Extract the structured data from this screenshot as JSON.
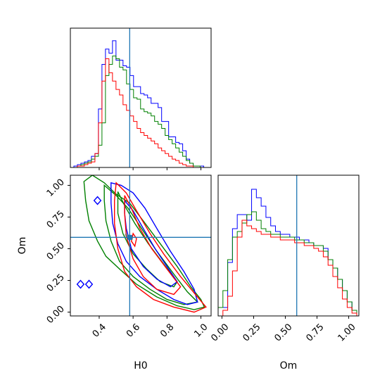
{
  "chart_data": {
    "type": "corner",
    "parameters": [
      "H0",
      "Om"
    ],
    "truth": {
      "H0": 0.58,
      "Om": 0.59
    },
    "colors": {
      "blue": "#0000ff",
      "green": "#008000",
      "red": "#ff0000",
      "truth": "#1f77b4"
    },
    "axes": {
      "H0": {
        "label": "H0",
        "range": [
          0.23,
          1.06
        ],
        "ticks": [
          0.4,
          0.6,
          0.8,
          1.0
        ],
        "tick_labels": [
          "0.4",
          "0.6",
          "0.8",
          "1.0"
        ]
      },
      "Om": {
        "label": "Om",
        "range": [
          -0.03,
          1.08
        ],
        "ticks": [
          0.0,
          0.25,
          0.5,
          0.75,
          1.0
        ],
        "tick_labels": [
          "0.00",
          "0.25",
          "0.50",
          "0.75",
          "1.00"
        ]
      }
    },
    "hist_H0": {
      "x_min": 0.23,
      "bin_width": 0.0207,
      "ymax": 1.0,
      "series": [
        {
          "color": "blue",
          "values": [
            0,
            0.01,
            0.02,
            0.03,
            0.04,
            0.05,
            0.08,
            0.1,
            0.42,
            0.74,
            0.85,
            0.82,
            0.91,
            0.77,
            0.77,
            0.73,
            0.72,
            0.66,
            0.58,
            0.58,
            0.53,
            0.52,
            0.5,
            0.46,
            0.46,
            0.43,
            0.33,
            0.33,
            0.22,
            0.22,
            0.18,
            0.17,
            0.12,
            0.06,
            0.03,
            0.01,
            0.01,
            0.01,
            0,
            0,
            0
          ]
        },
        {
          "color": "green",
          "values": [
            0,
            0,
            0.01,
            0.02,
            0.03,
            0.04,
            0.06,
            0.08,
            0.16,
            0.32,
            0.66,
            0.74,
            0.8,
            0.78,
            0.72,
            0.7,
            0.6,
            0.56,
            0.5,
            0.49,
            0.42,
            0.4,
            0.39,
            0.37,
            0.33,
            0.31,
            0.28,
            0.23,
            0.2,
            0.17,
            0.14,
            0.11,
            0.08,
            0.05,
            0.03,
            0.01,
            0.01,
            0,
            0,
            0
          ]
        },
        {
          "color": "red",
          "values": [
            0,
            0,
            0.01,
            0.01,
            0.02,
            0.03,
            0.04,
            0.1,
            0.32,
            0.62,
            0.78,
            0.68,
            0.62,
            0.56,
            0.52,
            0.45,
            0.41,
            0.37,
            0.33,
            0.28,
            0.25,
            0.23,
            0.21,
            0.19,
            0.17,
            0.14,
            0.12,
            0.1,
            0.08,
            0.06,
            0.05,
            0.03,
            0.02,
            0.01,
            0.01,
            0,
            0,
            0,
            0,
            0
          ]
        }
      ]
    },
    "hist_Om": {
      "x_min": -0.03,
      "bin_width": 0.0377,
      "ymax": 1.0,
      "series": [
        {
          "color": "blue",
          "values": [
            0.06,
            0.06,
            0.38,
            0.62,
            0.72,
            0.72,
            0.68,
            0.9,
            0.84,
            0.78,
            0.7,
            0.64,
            0.6,
            0.58,
            0.58,
            0.56,
            0.56,
            0.54,
            0.54,
            0.52,
            0.5,
            0.5,
            0.48,
            0.4,
            0.34,
            0.26,
            0.18,
            0.1,
            0.04
          ]
        },
        {
          "color": "green",
          "values": [
            0.06,
            0.18,
            0.4,
            0.56,
            0.6,
            0.66,
            0.72,
            0.74,
            0.68,
            0.62,
            0.6,
            0.58,
            0.58,
            0.56,
            0.56,
            0.56,
            0.54,
            0.54,
            0.52,
            0.52,
            0.5,
            0.5,
            0.46,
            0.4,
            0.34,
            0.26,
            0.18,
            0.1,
            0.04
          ]
        },
        {
          "color": "red",
          "values": [
            0,
            0.04,
            0.14,
            0.32,
            0.56,
            0.68,
            0.64,
            0.62,
            0.6,
            0.58,
            0.58,
            0.56,
            0.56,
            0.54,
            0.54,
            0.54,
            0.52,
            0.52,
            0.5,
            0.5,
            0.48,
            0.46,
            0.42,
            0.36,
            0.28,
            0.2,
            0.12,
            0.06,
            0.02
          ]
        }
      ]
    },
    "contours": [
      {
        "color": "green",
        "points": [
          [
            0.31,
            1.03
          ],
          [
            0.36,
            1.08
          ],
          [
            0.43,
            1.02
          ],
          [
            0.5,
            0.93
          ],
          [
            0.58,
            0.86
          ],
          [
            0.66,
            0.72
          ],
          [
            0.76,
            0.54
          ],
          [
            0.86,
            0.36
          ],
          [
            0.94,
            0.2
          ],
          [
            1.0,
            0.1
          ],
          [
            1.02,
            0.04
          ],
          [
            0.96,
            0.02
          ],
          [
            0.86,
            0.05
          ],
          [
            0.74,
            0.12
          ],
          [
            0.62,
            0.22
          ],
          [
            0.52,
            0.34
          ],
          [
            0.44,
            0.44
          ],
          [
            0.39,
            0.56
          ],
          [
            0.34,
            0.72
          ],
          [
            0.32,
            0.88
          ],
          [
            0.31,
            1.03
          ]
        ]
      },
      {
        "color": "green",
        "points": [
          [
            0.43,
            1.0
          ],
          [
            0.5,
            0.92
          ],
          [
            0.57,
            0.82
          ],
          [
            0.65,
            0.66
          ],
          [
            0.74,
            0.48
          ],
          [
            0.84,
            0.3
          ],
          [
            0.92,
            0.16
          ],
          [
            0.98,
            0.08
          ],
          [
            0.9,
            0.06
          ],
          [
            0.8,
            0.1
          ],
          [
            0.7,
            0.18
          ],
          [
            0.6,
            0.28
          ],
          [
            0.52,
            0.4
          ],
          [
            0.47,
            0.56
          ],
          [
            0.44,
            0.72
          ],
          [
            0.43,
            0.88
          ],
          [
            0.43,
            1.0
          ]
        ]
      },
      {
        "color": "green",
        "points": [
          [
            0.51,
            0.95
          ],
          [
            0.55,
            0.84
          ],
          [
            0.61,
            0.7
          ],
          [
            0.69,
            0.54
          ],
          [
            0.78,
            0.38
          ],
          [
            0.86,
            0.24
          ],
          [
            0.84,
            0.2
          ],
          [
            0.76,
            0.24
          ],
          [
            0.68,
            0.34
          ],
          [
            0.6,
            0.46
          ],
          [
            0.54,
            0.62
          ],
          [
            0.51,
            0.78
          ],
          [
            0.51,
            0.95
          ]
        ]
      },
      {
        "color": "blue",
        "points": [
          [
            0.47,
            1.02
          ],
          [
            0.53,
            1.0
          ],
          [
            0.6,
            0.94
          ],
          [
            0.67,
            0.82
          ],
          [
            0.74,
            0.66
          ],
          [
            0.82,
            0.48
          ],
          [
            0.9,
            0.32
          ],
          [
            0.96,
            0.18
          ],
          [
            0.98,
            0.08
          ],
          [
            0.92,
            0.06
          ],
          [
            0.84,
            0.1
          ],
          [
            0.74,
            0.18
          ],
          [
            0.64,
            0.28
          ],
          [
            0.56,
            0.4
          ],
          [
            0.51,
            0.54
          ],
          [
            0.48,
            0.7
          ],
          [
            0.47,
            0.86
          ],
          [
            0.47,
            1.02
          ]
        ]
      },
      {
        "color": "blue",
        "points": [
          [
            0.55,
            0.88
          ],
          [
            0.6,
            0.8
          ],
          [
            0.66,
            0.66
          ],
          [
            0.73,
            0.5
          ],
          [
            0.8,
            0.36
          ],
          [
            0.86,
            0.24
          ],
          [
            0.82,
            0.2
          ],
          [
            0.74,
            0.26
          ],
          [
            0.66,
            0.36
          ],
          [
            0.59,
            0.5
          ],
          [
            0.56,
            0.66
          ],
          [
            0.55,
            0.78
          ],
          [
            0.55,
            0.88
          ]
        ]
      },
      {
        "color": "blue",
        "points": [
          [
            0.27,
            0.22
          ],
          [
            0.29,
            0.25
          ],
          [
            0.31,
            0.22
          ],
          [
            0.29,
            0.19
          ],
          [
            0.27,
            0.22
          ]
        ]
      },
      {
        "color": "blue",
        "points": [
          [
            0.32,
            0.22
          ],
          [
            0.34,
            0.25
          ],
          [
            0.36,
            0.22
          ],
          [
            0.34,
            0.19
          ],
          [
            0.32,
            0.22
          ]
        ]
      },
      {
        "color": "blue",
        "points": [
          [
            0.37,
            0.88
          ],
          [
            0.39,
            0.91
          ],
          [
            0.41,
            0.88
          ],
          [
            0.39,
            0.85
          ],
          [
            0.37,
            0.88
          ]
        ]
      },
      {
        "color": "red",
        "points": [
          [
            0.5,
            1.02
          ],
          [
            0.56,
            0.94
          ],
          [
            0.62,
            0.8
          ],
          [
            0.7,
            0.62
          ],
          [
            0.78,
            0.46
          ],
          [
            0.88,
            0.28
          ],
          [
            0.98,
            0.12
          ],
          [
            1.03,
            0.04
          ],
          [
            0.96,
            0.0
          ],
          [
            0.84,
            0.04
          ],
          [
            0.72,
            0.1
          ],
          [
            0.62,
            0.2
          ],
          [
            0.55,
            0.32
          ],
          [
            0.51,
            0.5
          ],
          [
            0.49,
            0.7
          ],
          [
            0.49,
            0.88
          ],
          [
            0.5,
            1.02
          ]
        ]
      },
      {
        "color": "red",
        "points": [
          [
            0.55,
            0.92
          ],
          [
            0.59,
            0.82
          ],
          [
            0.64,
            0.66
          ],
          [
            0.71,
            0.5
          ],
          [
            0.8,
            0.34
          ],
          [
            0.88,
            0.2
          ],
          [
            0.84,
            0.14
          ],
          [
            0.74,
            0.18
          ],
          [
            0.66,
            0.28
          ],
          [
            0.6,
            0.42
          ],
          [
            0.56,
            0.6
          ],
          [
            0.55,
            0.78
          ],
          [
            0.55,
            0.92
          ]
        ]
      },
      {
        "color": "red",
        "points": [
          [
            0.6,
            0.62
          ],
          [
            0.62,
            0.58
          ],
          [
            0.61,
            0.52
          ],
          [
            0.59,
            0.56
          ],
          [
            0.6,
            0.62
          ]
        ]
      }
    ],
    "density_points": [
      [
        0.57,
        0.6
      ],
      [
        0.58,
        0.59
      ],
      [
        0.59,
        0.58
      ],
      [
        0.56,
        0.61
      ]
    ]
  }
}
